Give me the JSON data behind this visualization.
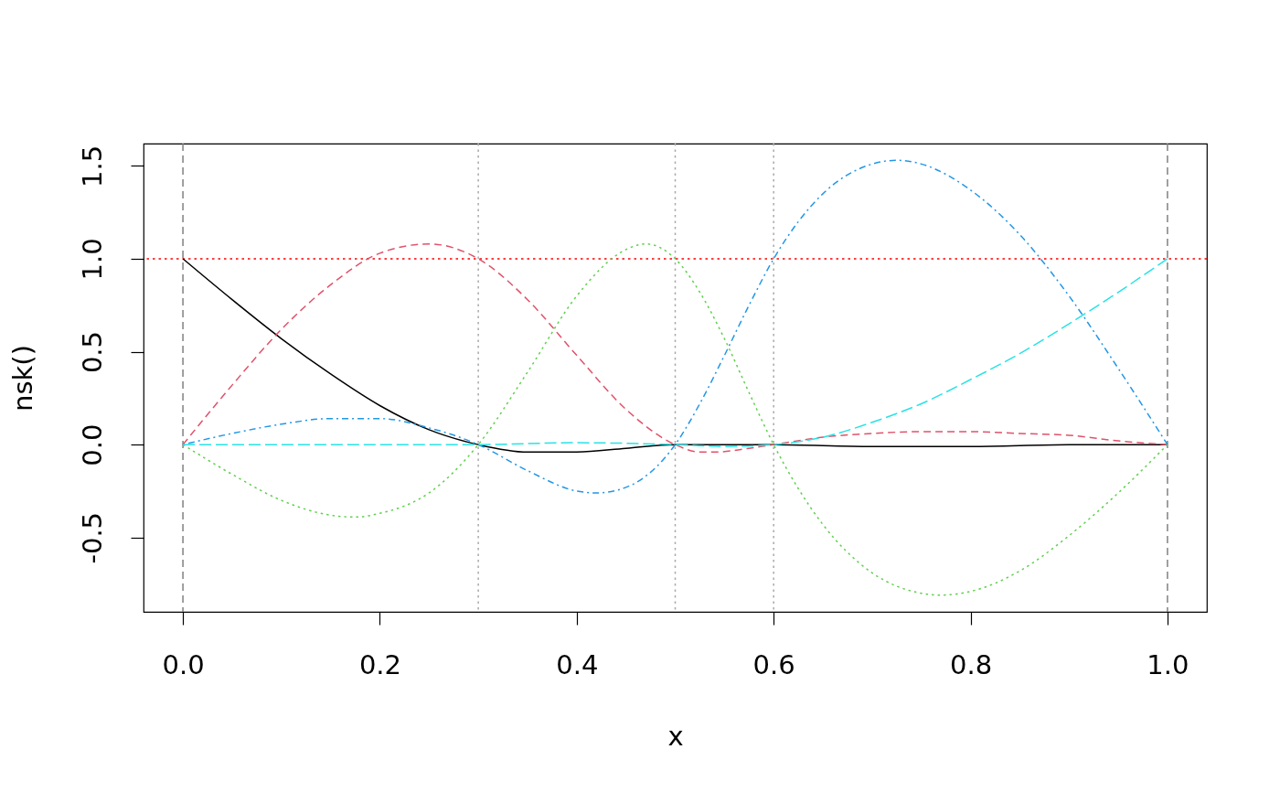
{
  "chart_data": {
    "type": "line",
    "xlabel": "x",
    "ylabel": "nsk()",
    "xlim": [
      -0.04,
      1.04
    ],
    "xticks": [
      {
        "value": 0,
        "label": "0.0"
      },
      0.2,
      0.4,
      0.6,
      0.8,
      {
        "value": 1,
        "label": "1.0"
      }
    ],
    "ylim": [
      -0.9,
      1.62
    ],
    "yticks": [
      -0.5,
      {
        "value": 0,
        "label": "0.0"
      },
      0.5,
      {
        "value": 1,
        "label": "1.0"
      },
      1.5
    ],
    "series": [
      {
        "color": "#000000",
        "line_style": "solid",
        "x": [
          0,
          0.05,
          0.1,
          0.15,
          0.2,
          0.25,
          0.3,
          0.35,
          0.375,
          0.4,
          0.45,
          0.5,
          0.55,
          0.6,
          0.7,
          0.8,
          0.9,
          1
        ],
        "values": [
          1,
          0.78,
          0.57,
          0.38,
          0.21,
          0.08,
          0,
          -0.04,
          -0.04,
          -0.04,
          -0.02,
          0,
          0,
          0,
          -0.01,
          -0.01,
          0,
          0
        ]
      },
      {
        "color": "#df536b",
        "line_style": "dashed",
        "x": [
          0,
          0.05,
          0.1,
          0.15,
          0.2,
          0.25,
          0.3,
          0.35,
          0.4,
          0.45,
          0.5,
          0.525,
          0.54,
          0.575,
          0.6,
          0.65,
          0.7,
          0.75,
          0.8,
          0.85,
          0.9,
          0.95,
          1
        ],
        "values": [
          0,
          0.32,
          0.62,
          0.86,
          1.03,
          1.08,
          1,
          0.78,
          0.48,
          0.19,
          0,
          -0.04,
          -0.04,
          -0.02,
          0,
          0.04,
          0.06,
          0.07,
          0.07,
          0.06,
          0.05,
          0.02,
          0
        ]
      },
      {
        "color": "#61d04f",
        "line_style": "dotted",
        "x": [
          0,
          0.05,
          0.1,
          0.15,
          0.175,
          0.2,
          0.25,
          0.3,
          0.35,
          0.4,
          0.45,
          0.47,
          0.5,
          0.525,
          0.55,
          0.575,
          0.6,
          0.65,
          0.7,
          0.75,
          0.77,
          0.8,
          0.85,
          0.9,
          0.95,
          1
        ],
        "values": [
          0,
          -0.16,
          -0.3,
          -0.38,
          -0.39,
          -0.37,
          -0.26,
          0,
          0.39,
          0.8,
          1.05,
          1.08,
          1,
          0.82,
          0.57,
          0.28,
          0,
          -0.43,
          -0.69,
          -0.8,
          -0.81,
          -0.79,
          -0.68,
          -0.49,
          -0.26,
          0
        ]
      },
      {
        "color": "#2297e6",
        "line_style": "dashdot",
        "x": [
          0,
          0.05,
          0.1,
          0.15,
          0.175,
          0.2,
          0.25,
          0.3,
          0.35,
          0.4,
          0.42,
          0.45,
          0.5,
          0.525,
          0.55,
          0.575,
          0.6,
          0.65,
          0.7,
          0.725,
          0.75,
          0.8,
          0.85,
          0.9,
          0.95,
          1
        ],
        "values": [
          0,
          0.06,
          0.11,
          0.14,
          0.14,
          0.14,
          0.09,
          0,
          -0.14,
          -0.25,
          -0.26,
          -0.23,
          0,
          0.22,
          0.48,
          0.75,
          1,
          1.35,
          1.51,
          1.53,
          1.51,
          1.37,
          1.13,
          0.8,
          0.41,
          0
        ]
      },
      {
        "color": "#28e2e5",
        "line_style": "longdash",
        "x": [
          0,
          0.1,
          0.2,
          0.3,
          0.4,
          0.5,
          0.55,
          0.6,
          0.65,
          0.7,
          0.75,
          0.8,
          0.85,
          0.9,
          0.95,
          1
        ],
        "values": [
          0,
          0,
          0,
          0,
          0.01,
          0,
          -0.01,
          0,
          0.04,
          0.12,
          0.22,
          0.35,
          0.49,
          0.65,
          0.82,
          1
        ]
      }
    ],
    "ref_lines": [
      {
        "axis": "x",
        "value": 0,
        "color": "#808080",
        "line_style": "dashed"
      },
      {
        "axis": "x",
        "value": 0.3,
        "color": "#a9a9a9",
        "line_style": "dotted"
      },
      {
        "axis": "x",
        "value": 0.5,
        "color": "#a9a9a9",
        "line_style": "dotted"
      },
      {
        "axis": "x",
        "value": 0.6,
        "color": "#a9a9a9",
        "line_style": "dotted"
      },
      {
        "axis": "x",
        "value": 1,
        "color": "#808080",
        "line_style": "dashed"
      },
      {
        "axis": "y",
        "value": 1,
        "color": "#ff0000",
        "line_style": "dotted"
      }
    ]
  }
}
